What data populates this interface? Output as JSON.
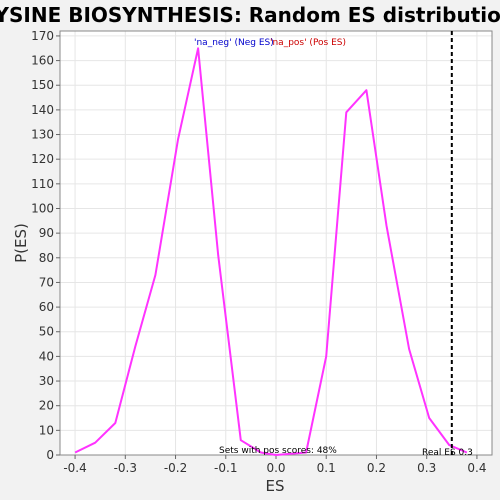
{
  "chart_data": {
    "type": "line",
    "title": "LYSINE BIOSYNTHESIS: Random ES distribution",
    "xlabel": "ES",
    "ylabel": "P(ES)",
    "xlim": [
      -0.43,
      0.43
    ],
    "ylim": [
      0,
      172
    ],
    "xticks": [
      -0.4,
      -0.3,
      -0.2,
      -0.1,
      0.0,
      0.1,
      0.2,
      0.3,
      0.4
    ],
    "xtick_labels": [
      "-0.4",
      "-0.3",
      "-0.2",
      "-0.1",
      "0.0",
      "0.1",
      "0.2",
      "0.3",
      "0.4"
    ],
    "yticks": [
      0,
      10,
      20,
      30,
      40,
      50,
      60,
      70,
      80,
      90,
      100,
      110,
      120,
      130,
      140,
      150,
      160,
      170
    ],
    "ytick_labels": [
      "0",
      "10",
      "20",
      "30",
      "40",
      "50",
      "60",
      "70",
      "80",
      "90",
      "100",
      "110",
      "120",
      "130",
      "140",
      "150",
      "160",
      "170"
    ],
    "grid": true,
    "series": [
      {
        "color": "#ff33ff",
        "x": [
          -0.4,
          -0.36,
          -0.32,
          -0.28,
          -0.24,
          -0.195,
          -0.155,
          -0.115,
          -0.07,
          -0.03,
          0.0,
          0.06,
          0.1,
          0.14,
          0.18,
          0.22,
          0.265,
          0.305,
          0.345,
          0.38
        ],
        "y": [
          1,
          5,
          13,
          44,
          73,
          128,
          165,
          81,
          6,
          1,
          0,
          1,
          40,
          139,
          148,
          93,
          43,
          15,
          4,
          1
        ]
      }
    ],
    "legend": {
      "neg": {
        "text": "'na_neg' (Neg ES)",
        "color": "#0000cc"
      },
      "pos": {
        "text": "'na_pos' (Pos ES)",
        "color": "#cc0000"
      }
    },
    "annotations": {
      "sets_text": "Sets with pos scores: 48%",
      "real_es_label": "Real ES 0.3",
      "real_es_value": 0.35
    },
    "colors": {
      "line": "#ff33ff",
      "grid": "#e6e6e6",
      "plot_bg": "#ffffff",
      "page_bg": "#f2f2f2",
      "real_es_line": "#000000"
    }
  }
}
